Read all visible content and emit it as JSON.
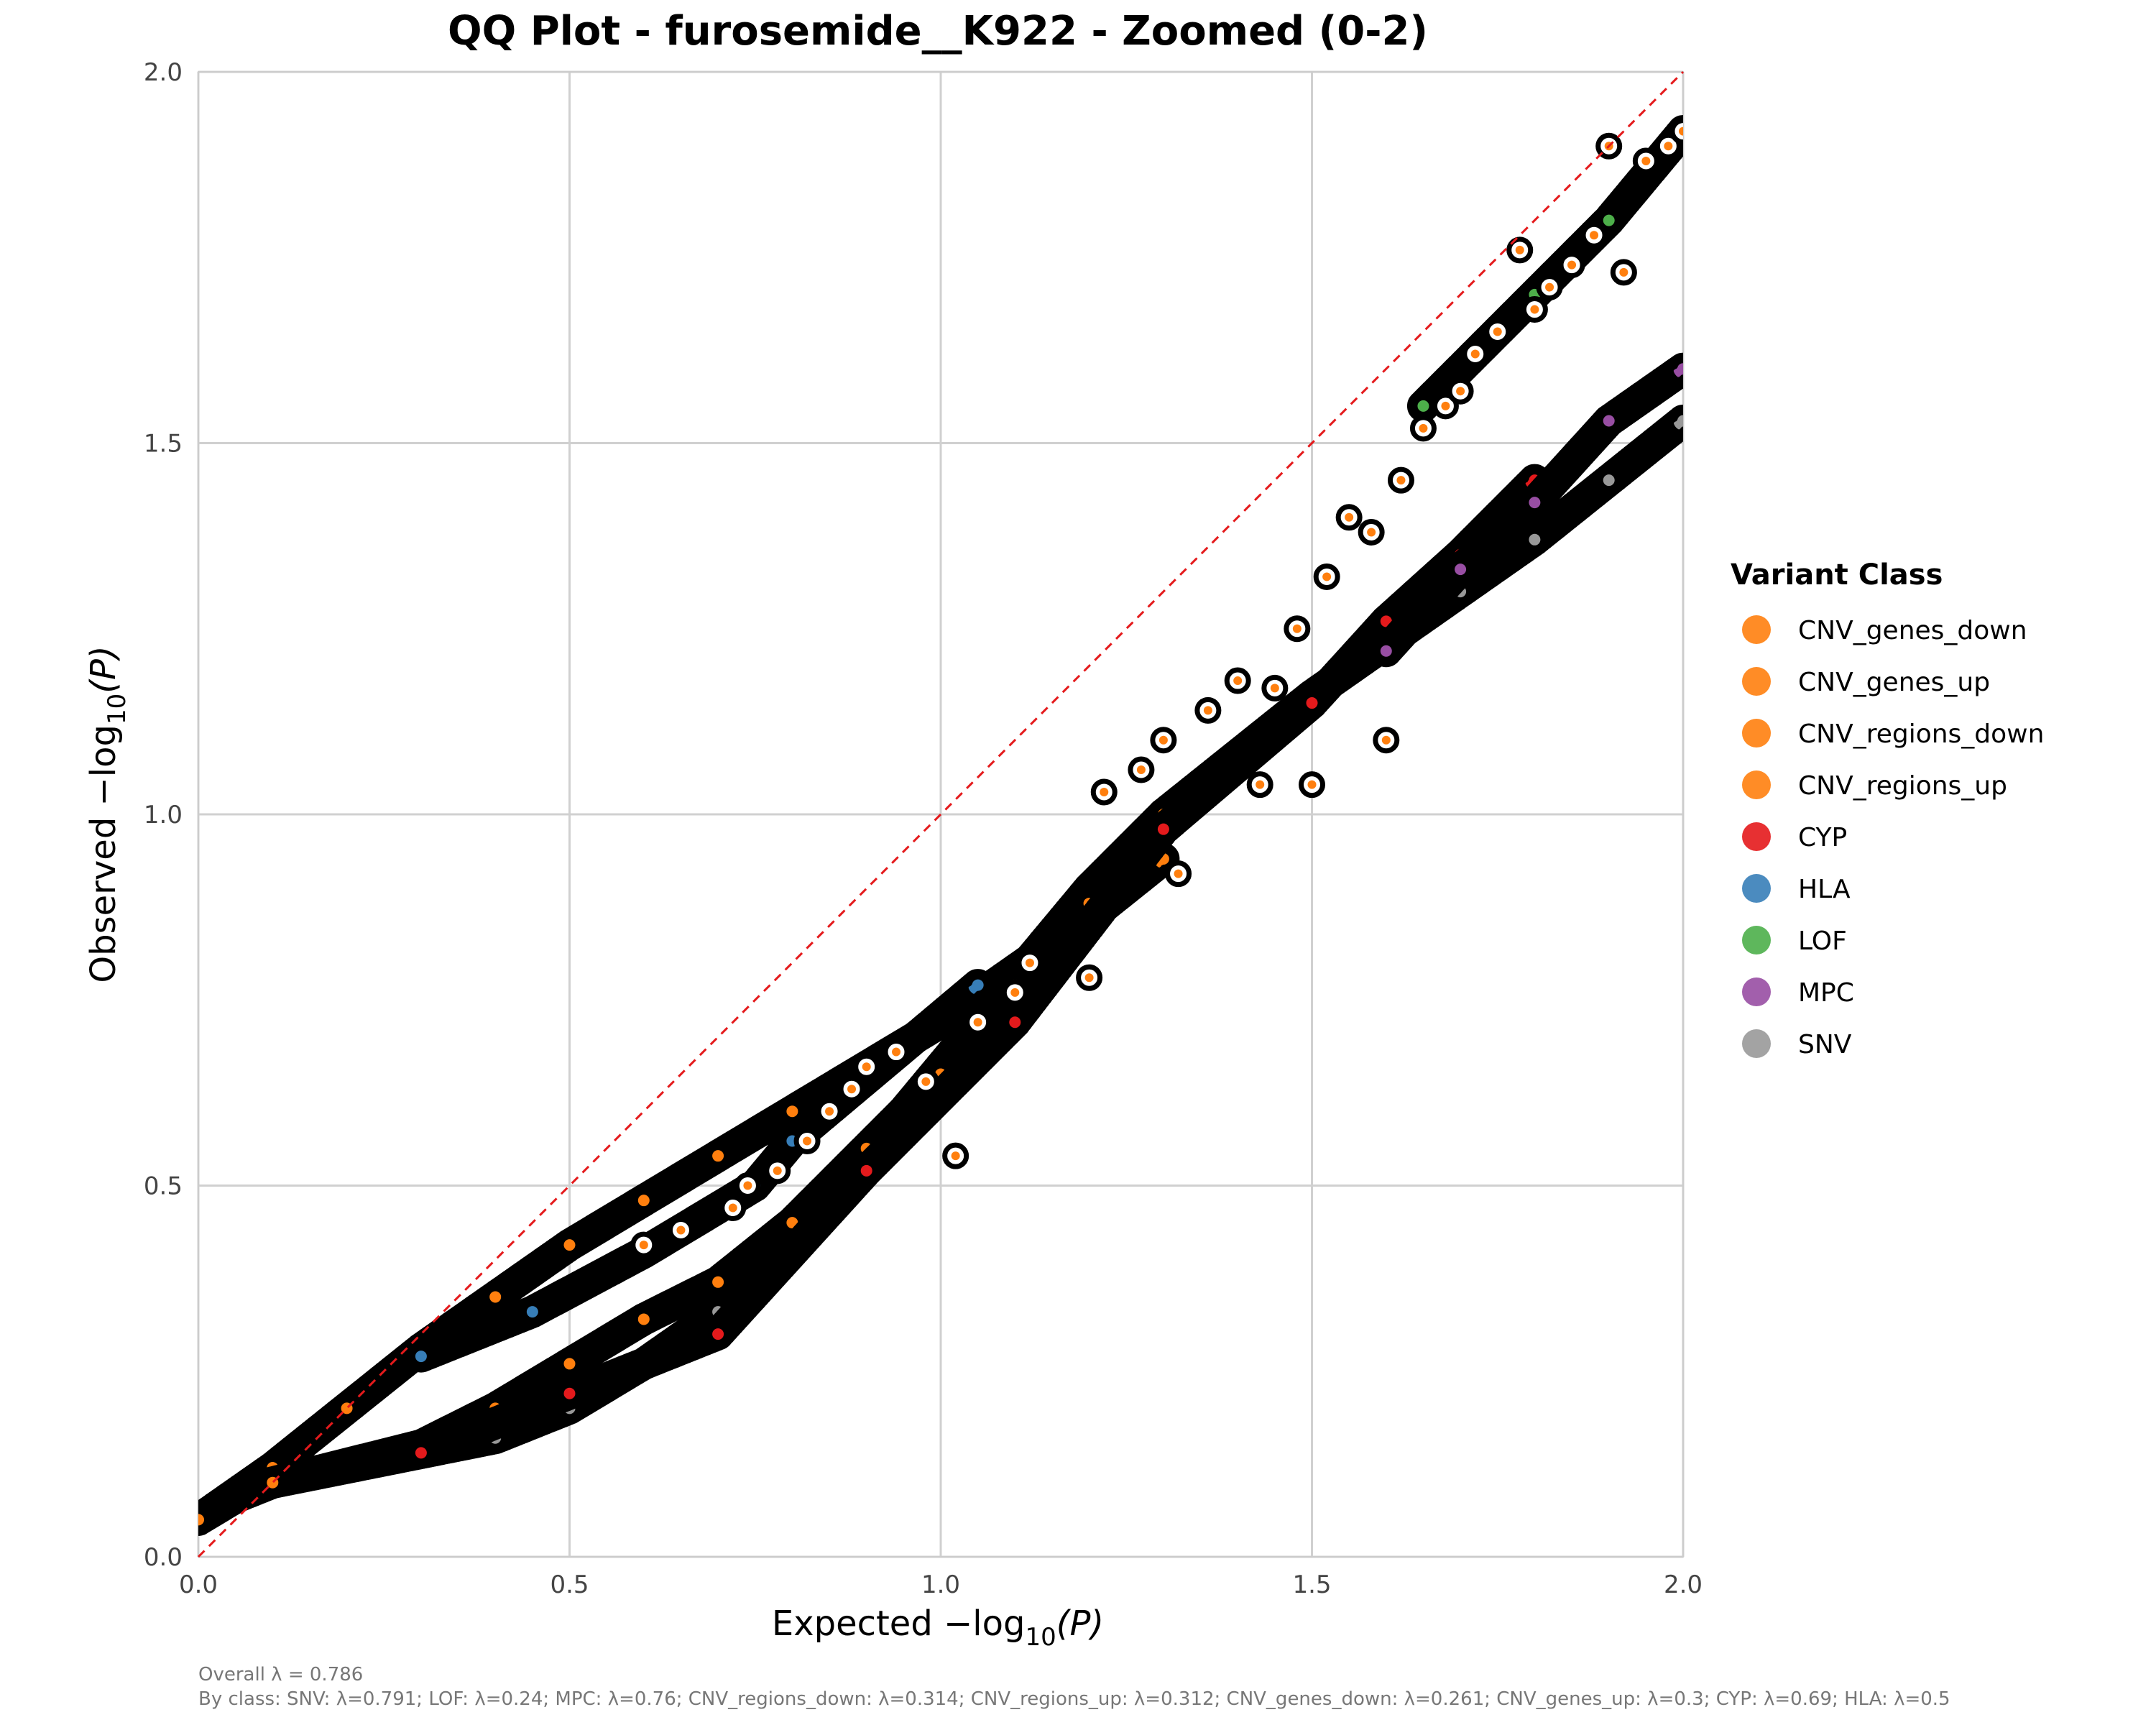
{
  "chart_data": {
    "type": "scatter",
    "title": "QQ Plot - furosemide__K922 - Zoomed (0-2)",
    "xlabel_prefix": "Expected −log",
    "xlabel_sub": "10",
    "xlabel_suffix": "(P)",
    "ylabel_prefix": "Observed −log",
    "ylabel_sub": "10",
    "ylabel_suffix": "(P)",
    "xlim": [
      0,
      2
    ],
    "ylim": [
      0,
      2
    ],
    "xticks": [
      "0.0",
      "0.5",
      "1.0",
      "1.5",
      "2.0"
    ],
    "yticks": [
      "0.0",
      "0.5",
      "1.0",
      "1.5",
      "2.0"
    ],
    "grid": true,
    "reference_line": {
      "slope": 1,
      "color": "#e41a1c",
      "style": "dashed"
    },
    "legend": {
      "title": "Variant Class",
      "placement": "right",
      "entries": [
        {
          "name": "CNV_genes_down",
          "color": "#ff7f0e"
        },
        {
          "name": "CNV_genes_up",
          "color": "#ff7f0e"
        },
        {
          "name": "CNV_regions_down",
          "color": "#ff7f0e"
        },
        {
          "name": "CNV_regions_up",
          "color": "#ff7f0e"
        },
        {
          "name": "CYP",
          "color": "#e41a1c"
        },
        {
          "name": "HLA",
          "color": "#377eb8"
        },
        {
          "name": "LOF",
          "color": "#4daf4a"
        },
        {
          "name": "MPC",
          "color": "#984ea3"
        },
        {
          "name": "SNV",
          "color": "#999999"
        }
      ]
    },
    "series": [
      {
        "class": "SNV",
        "color": "#999999",
        "curve": "main",
        "x": [
          0.0,
          0.05,
          0.1,
          0.2,
          0.3,
          0.4,
          0.5,
          0.6,
          0.7,
          0.8,
          0.9,
          1.0,
          1.1,
          1.2,
          1.3,
          1.4,
          1.5,
          1.6,
          1.7,
          1.8,
          1.9,
          2.0
        ],
        "y": [
          0.05,
          0.08,
          0.1,
          0.12,
          0.14,
          0.16,
          0.2,
          0.26,
          0.33,
          0.43,
          0.54,
          0.66,
          0.78,
          0.9,
          1.0,
          1.08,
          1.16,
          1.23,
          1.3,
          1.37,
          1.45,
          1.53
        ]
      },
      {
        "class": "CNV_regions_down",
        "color": "#ff7f0e",
        "curve": "upper",
        "x": [
          0.0,
          0.1,
          0.2,
          0.3,
          0.4,
          0.5,
          0.6,
          0.7,
          0.8,
          0.9,
          1.0,
          1.1,
          1.2,
          1.3
        ],
        "y": [
          0.05,
          0.12,
          0.2,
          0.28,
          0.35,
          0.42,
          0.48,
          0.54,
          0.6,
          0.66,
          0.72,
          0.79,
          0.86,
          0.94
        ]
      },
      {
        "class": "CNV_regions_up",
        "color": "#ff7f0e",
        "curve": "middle",
        "x": [
          0.1,
          0.3,
          0.4,
          0.5,
          0.6,
          0.7,
          0.8,
          0.9,
          1.0,
          1.1,
          1.2,
          1.3
        ],
        "y": [
          0.1,
          0.15,
          0.2,
          0.26,
          0.32,
          0.37,
          0.45,
          0.55,
          0.65,
          0.77,
          0.88,
          1.0
        ]
      },
      {
        "class": "CYP",
        "color": "#e41a1c",
        "curve": "middle",
        "x": [
          0.3,
          0.5,
          0.7,
          0.9,
          1.1,
          1.3,
          1.5,
          1.6,
          1.7,
          1.8
        ],
        "y": [
          0.14,
          0.22,
          0.3,
          0.52,
          0.72,
          0.98,
          1.15,
          1.26,
          1.35,
          1.45
        ]
      },
      {
        "class": "HLA",
        "color": "#377eb8",
        "curve": "upper",
        "x": [
          0.3,
          0.45,
          0.6,
          0.75,
          0.8,
          1.05
        ],
        "y": [
          0.27,
          0.33,
          0.41,
          0.5,
          0.56,
          0.77
        ]
      },
      {
        "class": "LOF",
        "color": "#4daf4a",
        "curve": "upper-right",
        "x": [
          1.65,
          1.8,
          1.9,
          2.0
        ],
        "y": [
          1.55,
          1.7,
          1.8,
          1.92
        ]
      },
      {
        "class": "MPC",
        "color": "#984ea3",
        "curve": "lower-right",
        "x": [
          1.6,
          1.7,
          1.8,
          1.9,
          2.0
        ],
        "y": [
          1.22,
          1.33,
          1.42,
          1.53,
          1.6
        ]
      }
    ],
    "highlighted_points": {
      "x": [
        0.6,
        0.65,
        0.72,
        0.74,
        0.78,
        0.82,
        0.85,
        0.88,
        0.9,
        0.94,
        0.98,
        1.02,
        1.05,
        1.1,
        1.12,
        1.2,
        1.22,
        1.27,
        1.3,
        1.32,
        1.36,
        1.4,
        1.43,
        1.45,
        1.48,
        1.5,
        1.52,
        1.55,
        1.58,
        1.6,
        1.62,
        1.65,
        1.68,
        1.7,
        1.72,
        1.75,
        1.78,
        1.8,
        1.82,
        1.85,
        1.88,
        1.9,
        1.92,
        1.95,
        1.98,
        2.0
      ],
      "y": [
        0.42,
        0.44,
        0.47,
        0.5,
        0.52,
        0.56,
        0.6,
        0.63,
        0.66,
        0.68,
        0.64,
        0.54,
        0.72,
        0.76,
        0.8,
        0.78,
        1.03,
        1.06,
        1.1,
        0.92,
        1.14,
        1.18,
        1.04,
        1.17,
        1.25,
        1.04,
        1.32,
        1.4,
        1.38,
        1.1,
        1.45,
        1.52,
        1.55,
        1.57,
        1.62,
        1.65,
        1.76,
        1.68,
        1.71,
        1.74,
        1.78,
        1.9,
        1.73,
        1.88,
        1.9,
        1.92
      ]
    },
    "footnote_overall": "Overall λ = 0.786",
    "footnote_by_class": "By class: SNV: λ=0.791; LOF: λ=0.24; MPC: λ=0.76; CNV_regions_down: λ=0.314; CNV_regions_up: λ=0.312; CNV_genes_down: λ=0.261; CNV_genes_up: λ=0.3; CYP: λ=0.69; HLA: λ=0.5"
  }
}
